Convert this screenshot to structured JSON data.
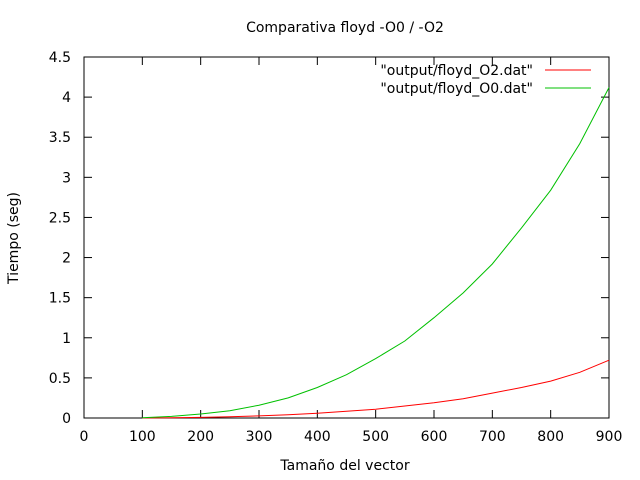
{
  "chart_data": {
    "type": "line",
    "title": "Comparativa floyd -O0 / -O2",
    "xlabel": "Tamaño del vector",
    "ylabel": "Tiempo (seg)",
    "xlim": [
      0,
      900
    ],
    "ylim": [
      0,
      4.5
    ],
    "x_ticks": [
      0,
      100,
      200,
      300,
      400,
      500,
      600,
      700,
      800,
      900
    ],
    "x_tick_labels": [
      "0",
      "100",
      "200",
      "300",
      "400",
      "500",
      "600",
      "700",
      "800",
      "900"
    ],
    "y_ticks": [
      0,
      0.5,
      1,
      1.5,
      2,
      2.5,
      3,
      3.5,
      4,
      4.5
    ],
    "y_tick_labels": [
      "0",
      "0.5",
      "1",
      "1.5",
      "2",
      "2.5",
      "3",
      "3.5",
      "4",
      "4.5"
    ],
    "grid": false,
    "legend_position": "top-right",
    "series": [
      {
        "name": "\"output/floyd_O2.dat\"",
        "color": "#ff0000",
        "x": [
          100,
          150,
          200,
          250,
          300,
          350,
          400,
          450,
          500,
          550,
          600,
          650,
          700,
          750,
          800,
          850,
          900
        ],
        "y": [
          0.0,
          0.003,
          0.008,
          0.016,
          0.026,
          0.041,
          0.06,
          0.085,
          0.11,
          0.15,
          0.19,
          0.24,
          0.31,
          0.38,
          0.46,
          0.57,
          0.72
        ]
      },
      {
        "name": "\"output/floyd_O0.dat\"",
        "color": "#00c000",
        "x": [
          100,
          150,
          200,
          250,
          300,
          350,
          400,
          450,
          500,
          550,
          600,
          650,
          700,
          750,
          800,
          850,
          900
        ],
        "y": [
          0.002,
          0.02,
          0.05,
          0.09,
          0.16,
          0.25,
          0.38,
          0.54,
          0.74,
          0.96,
          1.25,
          1.56,
          1.92,
          2.37,
          2.84,
          3.42,
          4.12
        ]
      }
    ]
  }
}
